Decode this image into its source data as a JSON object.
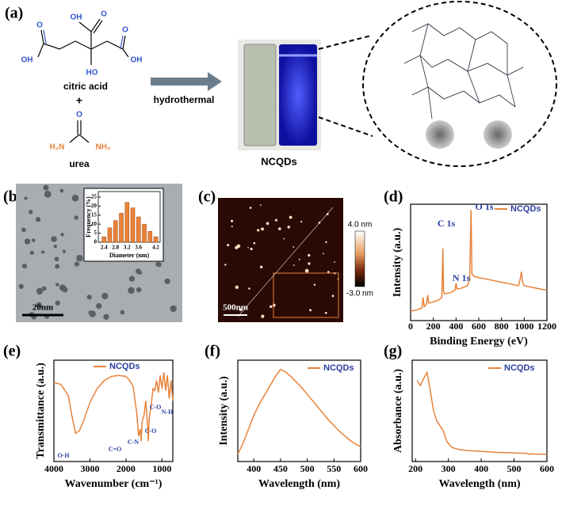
{
  "panel_labels": [
    "(a)",
    "(b)",
    "(c)",
    "(d)",
    "(e)",
    "(f)",
    "(g)"
  ],
  "scheme": {
    "citric_acid_labels": [
      "O",
      "OH",
      "O",
      "OH",
      "HO",
      "O",
      "OH"
    ],
    "reactant_1": "citric acid",
    "plus": "+",
    "urea_labels": [
      "O",
      "H₂N",
      "NH₂"
    ],
    "reactant_2": "urea",
    "arrow_label": "hydrothermal",
    "product": "NCQDs"
  },
  "tem": {
    "scale_bar": "20nm"
  },
  "afm": {
    "scale_bar": "500nm",
    "colorbar_max": "4.0 nm",
    "colorbar_min": "-3.0 nm"
  },
  "chart_data": [
    {
      "type": "bar",
      "xlabel": "Diameter (nm)",
      "ylabel": "Frequency (%)",
      "x": [
        2.4,
        2.6,
        2.8,
        3.0,
        3.2,
        3.4,
        3.6,
        3.8,
        4.0,
        4.2
      ],
      "values": [
        3,
        8,
        12,
        16,
        22,
        19,
        14,
        10,
        6,
        3
      ],
      "color": "#e8833a",
      "xlim": [
        2.2,
        4.35
      ],
      "xticks": [
        2.4,
        2.8,
        3.2,
        3.6,
        4.2
      ],
      "ylim": [
        0,
        28
      ],
      "yticks": [
        0,
        5,
        10,
        15,
        20,
        25
      ]
    },
    {
      "type": "line",
      "xlabel": "Binding Energy (eV)",
      "ylabel": "Intensity (a.u.)",
      "x": [
        0,
        80,
        100,
        110,
        120,
        140,
        150,
        160,
        200,
        250,
        275,
        284,
        290,
        300,
        350,
        390,
        400,
        410,
        450,
        500,
        520,
        532,
        540,
        560,
        600,
        700,
        800,
        900,
        950,
        970,
        975,
        985,
        1000,
        1100,
        1200
      ],
      "series": [
        {
          "name": "NCQDs",
          "color": "#e8833a",
          "values": [
            8,
            10,
            11,
            20,
            12,
            14,
            22,
            15,
            16,
            18,
            20,
            62,
            25,
            23,
            24,
            26,
            32,
            27,
            28,
            30,
            35,
            95,
            40,
            38,
            37,
            35,
            33,
            31,
            30,
            38,
            42,
            33,
            30,
            28,
            26
          ]
        }
      ],
      "xlim": [
        0,
        1200
      ],
      "xticks": [
        0,
        200,
        400,
        600,
        800,
        1000,
        1200
      ],
      "ylim": [
        0,
        100
      ],
      "annotations": [
        "C 1s",
        "N 1s",
        "O 1s"
      ]
    },
    {
      "type": "line",
      "xlabel": "Wavenumber (cm⁻¹)",
      "ylabel": "Transmittance (a.u.)",
      "x": [
        4000,
        3800,
        3600,
        3500,
        3400,
        3300,
        3200,
        3000,
        2800,
        2600,
        2400,
        2200,
        2000,
        1900,
        1800,
        1750,
        1700,
        1650,
        1600,
        1580,
        1550,
        1500,
        1450,
        1400,
        1380,
        1350,
        1300,
        1250,
        1200,
        1150,
        1100,
        1050,
        1000,
        950,
        900,
        850,
        800,
        750,
        700
      ],
      "series": [
        {
          "name": "NCQDs",
          "color": "#e8833a",
          "values": [
            78,
            76,
            65,
            45,
            28,
            30,
            38,
            58,
            72,
            80,
            84,
            85,
            84,
            80,
            74,
            60,
            48,
            25,
            32,
            20,
            40,
            45,
            60,
            35,
            20,
            45,
            55,
            72,
            70,
            80,
            68,
            85,
            72,
            88,
            70,
            85,
            62,
            80,
            60
          ]
        }
      ],
      "xlim": [
        4000,
        700
      ],
      "xticks": [
        4000,
        3000,
        2000,
        1000
      ],
      "ylim": [
        0,
        100
      ],
      "annotations": [
        "O-H",
        "C=O",
        "C-N",
        "C-O",
        "C-O",
        "N-H"
      ]
    },
    {
      "type": "line",
      "xlabel": "Wavelength (nm)",
      "ylabel": "Intensity (a.u.)",
      "x": [
        370,
        380,
        390,
        400,
        410,
        420,
        430,
        440,
        450,
        460,
        470,
        480,
        490,
        500,
        510,
        520,
        530,
        540,
        550,
        560,
        570,
        580,
        590,
        600
      ],
      "series": [
        {
          "name": "NCQDs",
          "color": "#e8833a",
          "values": [
            8,
            20,
            35,
            50,
            62,
            72,
            82,
            92,
            100,
            97,
            92,
            86,
            80,
            73,
            66,
            59,
            52,
            45,
            39,
            33,
            28,
            23,
            19,
            16
          ]
        }
      ],
      "xlim": [
        370,
        600
      ],
      "xticks": [
        400,
        450,
        500,
        550,
        600
      ],
      "ylim": [
        0,
        110
      ]
    },
    {
      "type": "line",
      "xlabel": "Wavelength (nm)",
      "ylabel": "Absorbance (a.u.)",
      "x": [
        205,
        215,
        225,
        235,
        245,
        255,
        265,
        275,
        285,
        295,
        310,
        330,
        350,
        400,
        450,
        500,
        540,
        545,
        550,
        600
      ],
      "series": [
        {
          "name": "NCQDs",
          "color": "#e8833a",
          "values": [
            80,
            75,
            82,
            88,
            70,
            50,
            40,
            35,
            30,
            20,
            14,
            12,
            11,
            10,
            9,
            8.5,
            8,
            7,
            7.5,
            7
          ]
        }
      ],
      "xlim": [
        190,
        600
      ],
      "xticks": [
        200,
        300,
        400,
        500,
        600
      ],
      "ylim": [
        0,
        100
      ]
    }
  ]
}
